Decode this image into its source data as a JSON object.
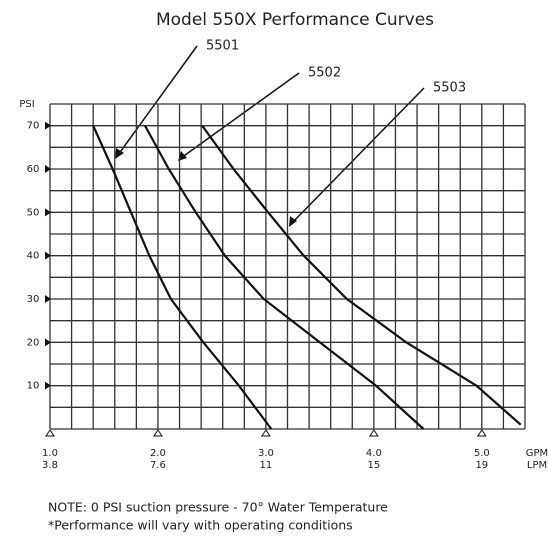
{
  "chart_data": {
    "type": "line",
    "title": "Model 550X Performance Curves",
    "y_label": "PSI",
    "x_label": "GPM",
    "x2_label": "LPM",
    "x2_tick_labels": [
      "3.8",
      "7.6",
      "11",
      "15",
      "19"
    ],
    "xlim": [
      1.0,
      5.4
    ],
    "ylim": [
      0,
      75
    ],
    "xticks": [
      {
        "value": 1,
        "label": "1.0"
      },
      {
        "value": 2,
        "label": "2.0"
      },
      {
        "value": 3,
        "label": "3.0"
      },
      {
        "value": 4,
        "label": "4.0"
      },
      {
        "value": 5,
        "label": "5.0"
      }
    ],
    "yticks": [
      10,
      20,
      30,
      40,
      50,
      60,
      70
    ],
    "grid": true,
    "series": [
      {
        "name": "5501",
        "color": "#111111",
        "x": [
          1.4,
          1.58,
          1.75,
          1.92,
          2.12,
          2.42,
          2.75,
          3.05
        ],
        "values": [
          70,
          60,
          50,
          40,
          30,
          20,
          10,
          0
        ]
      },
      {
        "name": "5502",
        "color": "#111111",
        "x": [
          1.88,
          2.1,
          2.35,
          2.62,
          2.98,
          3.5,
          4.02,
          4.46
        ],
        "values": [
          70,
          60,
          50,
          40,
          30,
          20,
          10,
          0
        ]
      },
      {
        "name": "5503",
        "color": "#111111",
        "x": [
          2.41,
          2.7,
          3.02,
          3.35,
          3.75,
          4.3,
          4.95,
          5.36
        ],
        "values": [
          70,
          60,
          50,
          40,
          30,
          20,
          10,
          1
        ]
      }
    ],
    "notes": [
      "NOTE:   0 PSI suction pressure - 70° Water Temperature",
      "*Performance will vary with operating conditions"
    ]
  }
}
